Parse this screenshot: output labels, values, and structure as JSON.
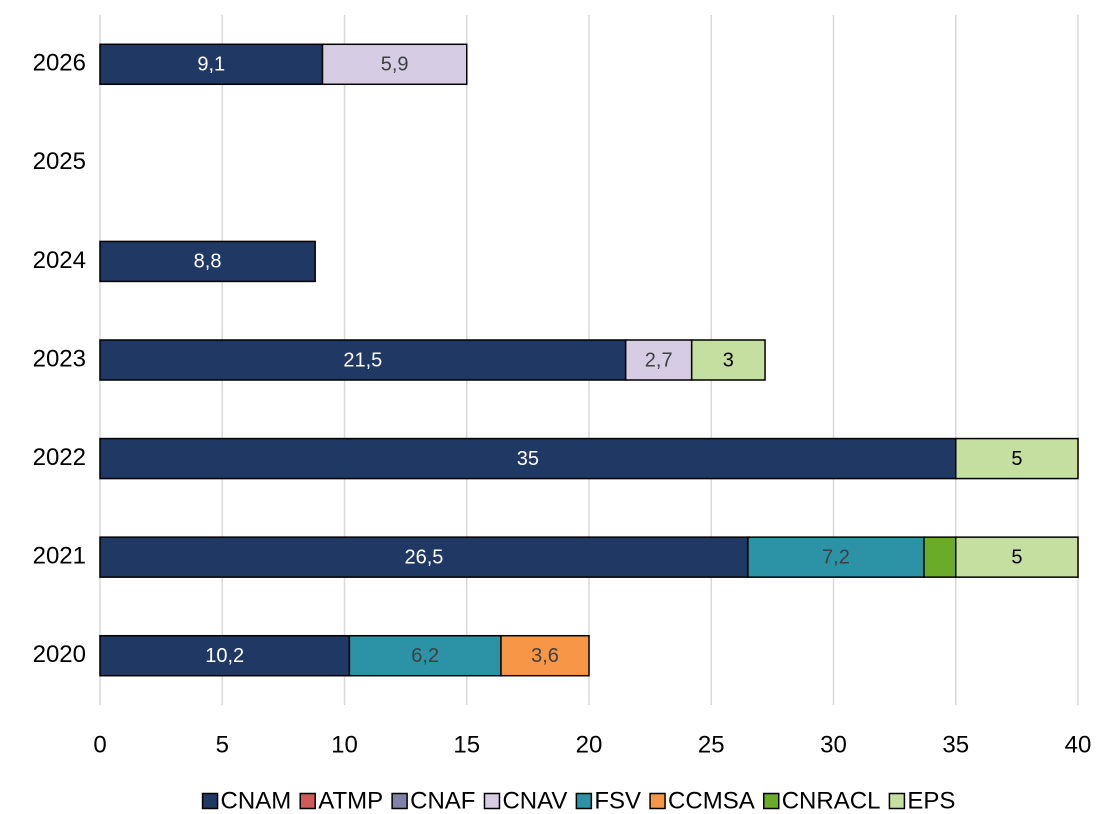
{
  "chart_data": {
    "type": "stacked_barh",
    "categories": [
      "2020",
      "2021",
      "2022",
      "2023",
      "2024",
      "2025",
      "2026"
    ],
    "series": [
      {
        "name": "CNAM",
        "color": "#203864",
        "label_color": "#ffffff",
        "values": [
          10.2,
          26.5,
          35,
          21.5,
          8.8,
          null,
          9.1
        ],
        "value_labels": [
          "10,2",
          "26,5",
          "35",
          "21,5",
          "8,8",
          null,
          "9,1"
        ]
      },
      {
        "name": "ATMP",
        "color": "#d05a5a",
        "label_color": "#404040",
        "values": [
          null,
          null,
          null,
          null,
          null,
          null,
          null
        ],
        "value_labels": [
          null,
          null,
          null,
          null,
          null,
          null,
          null
        ]
      },
      {
        "name": "CNAF",
        "color": "#8080a8",
        "label_color": "#404040",
        "values": [
          null,
          null,
          null,
          null,
          null,
          null,
          null
        ],
        "value_labels": [
          null,
          null,
          null,
          null,
          null,
          null,
          null
        ]
      },
      {
        "name": "CNAV",
        "color": "#d6cde5",
        "label_color": "#404040",
        "values": [
          null,
          null,
          null,
          2.7,
          null,
          null,
          5.9
        ],
        "value_labels": [
          null,
          null,
          null,
          "2,7",
          null,
          null,
          "5,9"
        ]
      },
      {
        "name": "FSV",
        "color": "#2b93a5",
        "label_color": "#404040",
        "values": [
          6.2,
          7.2,
          null,
          null,
          null,
          null,
          null
        ],
        "value_labels": [
          "6,2",
          "7,2",
          null,
          null,
          null,
          null,
          null
        ]
      },
      {
        "name": "CCMSA",
        "color": "#f79646",
        "label_color": "#404040",
        "values": [
          3.6,
          null,
          null,
          null,
          null,
          null,
          null
        ],
        "value_labels": [
          "3,6",
          null,
          null,
          null,
          null,
          null,
          null
        ]
      },
      {
        "name": "CNRACL",
        "color": "#6aab2a",
        "label_color": "#404040",
        "values": [
          null,
          1.3,
          null,
          null,
          null,
          null,
          null
        ],
        "value_labels": [
          null,
          null,
          null,
          null,
          null,
          null,
          null
        ]
      },
      {
        "name": "EPS",
        "color": "#c4dfa0",
        "label_color": "#000000",
        "values": [
          null,
          5,
          5,
          3,
          null,
          null,
          null
        ],
        "value_labels": [
          null,
          "5",
          "5",
          "3",
          null,
          null,
          null
        ]
      }
    ],
    "xlim": [
      0,
      40
    ],
    "xticks": [
      0,
      5,
      10,
      15,
      20,
      25,
      30,
      35,
      40
    ],
    "grid": true,
    "legend": "bottom"
  }
}
